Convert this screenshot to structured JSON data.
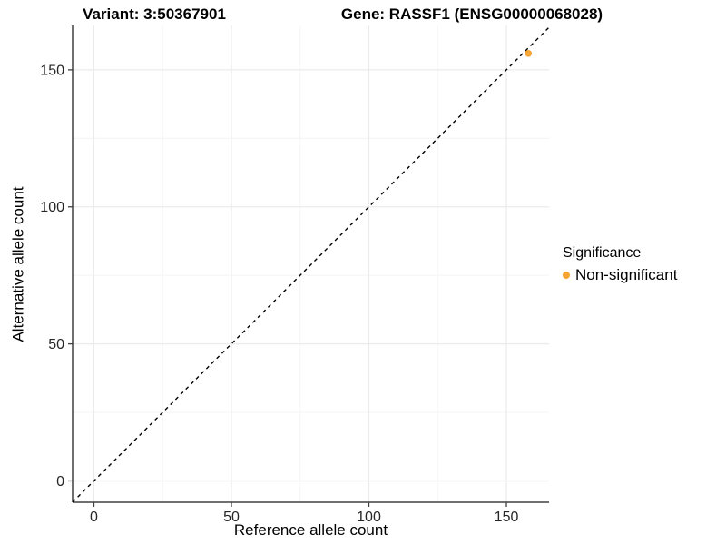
{
  "chart_data": {
    "type": "scatter",
    "title_left": "Variant: 3:50367901",
    "title_right": "Gene: RASSF1 (ENSG00000068028)",
    "xlabel": "Reference allele count",
    "ylabel": "Alternative allele count",
    "xlim": [
      -7.75,
      165.5
    ],
    "ylim": [
      -7.8,
      166.2
    ],
    "x_ticks": [
      0,
      50,
      100,
      150
    ],
    "y_ticks": [
      0,
      50,
      100,
      150
    ],
    "x_minor_ticks": [
      25,
      75,
      125
    ],
    "y_minor_ticks": [
      25,
      75,
      125
    ],
    "grid": true,
    "identity_line": {
      "slope": 1,
      "intercept": 0,
      "style": "dashed",
      "color": "#000000"
    },
    "series": [
      {
        "name": "Non-significant",
        "color": "#F8A432",
        "points": [
          {
            "x": 158,
            "y": 156
          }
        ]
      }
    ],
    "legend": {
      "title": "Significance",
      "position": "right",
      "items": [
        {
          "label": "Non-significant",
          "color": "#F8A432"
        }
      ]
    },
    "colors": {
      "background": "#FFFFFF",
      "grid_major": "#EBEBEB",
      "grid_minor": "#F4F4F4",
      "axis_line": "#404040",
      "tick_label": "#262626",
      "text": "#000000"
    }
  }
}
